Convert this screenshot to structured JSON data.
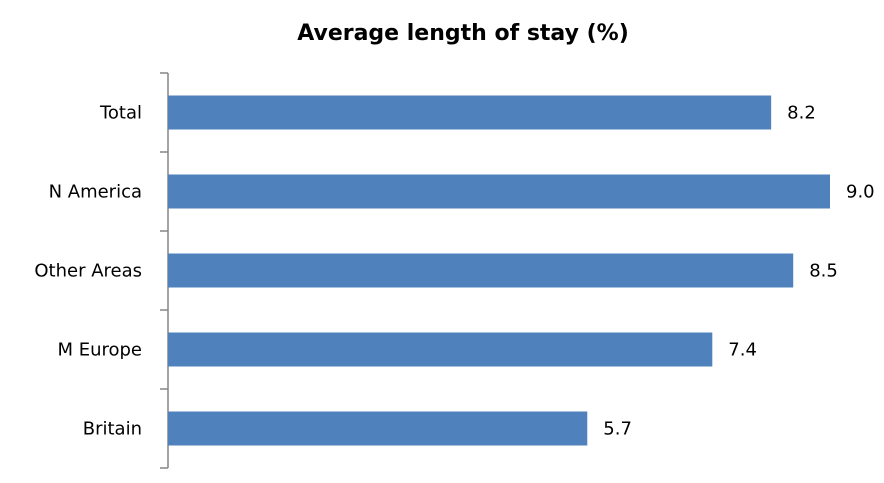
{
  "chart_data": {
    "type": "bar",
    "orientation": "horizontal",
    "title": "Average length of stay (%)",
    "xlabel": "",
    "ylabel": "",
    "categories": [
      "Total",
      "N America",
      "Other Areas",
      "M Europe",
      "Britain"
    ],
    "values": [
      8.2,
      9.0,
      8.5,
      7.4,
      5.7
    ],
    "value_labels": [
      "8.2",
      "9.0",
      "8.5",
      "7.4",
      "5.7"
    ],
    "xlim": [
      0,
      9.0
    ],
    "grid": false,
    "legend": "none",
    "bar_color": "#4F81BD"
  }
}
